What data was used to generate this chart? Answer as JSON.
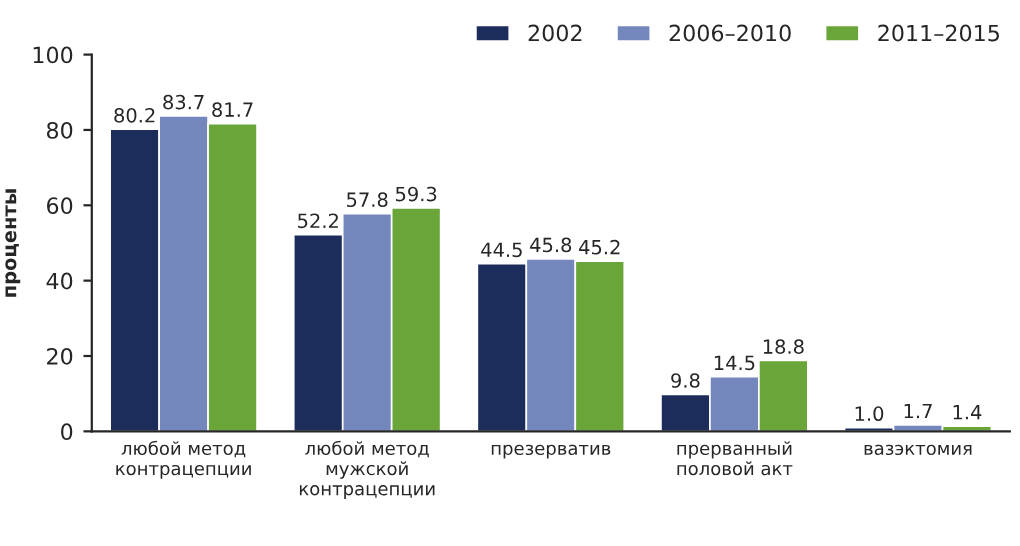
{
  "chart_data": {
    "type": "bar",
    "ylabel": "проценты",
    "categories": [
      "любой метод\nконтрацепции",
      "любой метод\nмужской\nконтрацепции",
      "презерватив",
      "прерванный\nполовой акт",
      "вазэктомия"
    ],
    "series": [
      {
        "name": "2002",
        "color": "#1c2d5c",
        "values": [
          80.2,
          52.2,
          44.5,
          9.8,
          1.0
        ],
        "value_labels": [
          "80.2",
          "52.2",
          "44.5",
          "9.8",
          "1.0"
        ]
      },
      {
        "name": "2006–2010",
        "color": "#7487bd",
        "values": [
          83.7,
          57.8,
          45.8,
          14.5,
          1.7
        ],
        "value_labels": [
          "83.7",
          "57.8",
          "45.8",
          "14.5",
          "1.7"
        ]
      },
      {
        "name": "2011–2015",
        "color": "#6aa539",
        "values": [
          81.7,
          59.3,
          45.2,
          18.8,
          1.4
        ],
        "value_labels": [
          "81.7",
          "59.3",
          "45.2",
          "18.8",
          "1.4"
        ]
      }
    ],
    "ylim": [
      0,
      100
    ],
    "yticks": [
      0,
      20,
      40,
      60,
      80,
      100
    ],
    "grid": false,
    "legend": "top right"
  }
}
